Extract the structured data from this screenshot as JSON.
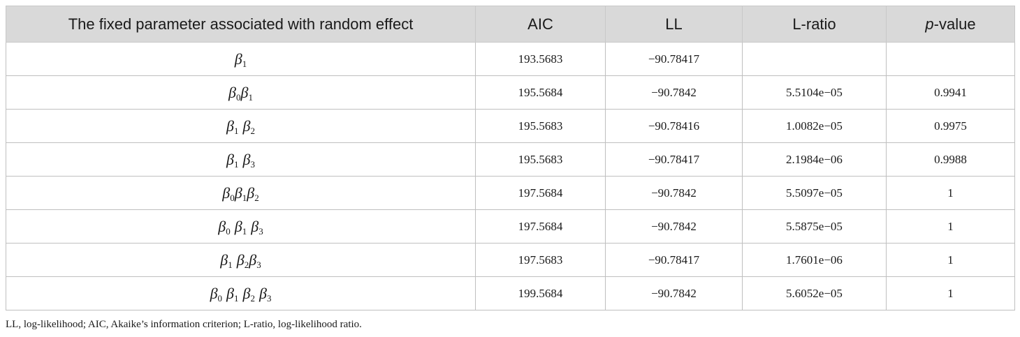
{
  "table": {
    "headers": [
      {
        "pre": "The fixed parameter associated with random effect",
        "italic": "",
        "post": ""
      },
      {
        "pre": "AIC",
        "italic": "",
        "post": ""
      },
      {
        "pre": "LL",
        "italic": "",
        "post": ""
      },
      {
        "pre": "L-ratio",
        "italic": "",
        "post": ""
      },
      {
        "pre": "",
        "italic": "p",
        "post": "-value"
      }
    ],
    "rows": [
      {
        "params": [
          {
            "s": "1",
            "sp": false
          }
        ],
        "aic": "193.5683",
        "ll": "−90.78417",
        "lratio": "",
        "pvalue": ""
      },
      {
        "params": [
          {
            "s": "0",
            "sp": false
          },
          {
            "s": "1",
            "sp": false
          }
        ],
        "aic": "195.5684",
        "ll": "−90.7842",
        "lratio": "5.5104e−05",
        "pvalue": "0.9941"
      },
      {
        "params": [
          {
            "s": "1",
            "sp": false
          },
          {
            "s": "2",
            "sp": true
          }
        ],
        "aic": "195.5683",
        "ll": "−90.78416",
        "lratio": "1.0082e−05",
        "pvalue": "0.9975"
      },
      {
        "params": [
          {
            "s": "1",
            "sp": false
          },
          {
            "s": "3",
            "sp": true
          }
        ],
        "aic": "195.5683",
        "ll": "−90.78417",
        "lratio": "2.1984e−06",
        "pvalue": "0.9988"
      },
      {
        "params": [
          {
            "s": "0",
            "sp": false
          },
          {
            "s": "1",
            "sp": false
          },
          {
            "s": "2",
            "sp": false
          }
        ],
        "aic": "197.5684",
        "ll": "−90.7842",
        "lratio": "5.5097e−05",
        "pvalue": "1"
      },
      {
        "params": [
          {
            "s": "0",
            "sp": false
          },
          {
            "s": "1",
            "sp": true
          },
          {
            "s": "3",
            "sp": true
          }
        ],
        "aic": "197.5684",
        "ll": "−90.7842",
        "lratio": "5.5875e−05",
        "pvalue": "1"
      },
      {
        "params": [
          {
            "s": "1",
            "sp": false
          },
          {
            "s": "2",
            "sp": true
          },
          {
            "s": "3",
            "sp": false
          }
        ],
        "aic": "197.5683",
        "ll": "−90.78417",
        "lratio": "1.7601e−06",
        "pvalue": "1"
      },
      {
        "params": [
          {
            "s": "0",
            "sp": false
          },
          {
            "s": "1",
            "sp": true
          },
          {
            "s": "2",
            "sp": true
          },
          {
            "s": "3",
            "sp": true
          }
        ],
        "aic": "199.5684",
        "ll": "−90.7842",
        "lratio": "5.6052e−05",
        "pvalue": "1"
      }
    ]
  },
  "footnote": "LL, log-likelihood; AIC, Akaike’s information criterion; L-ratio, log-likelihood ratio.",
  "symbols": {
    "beta": "β"
  },
  "colors": {
    "header_bg": "#d9d9d9",
    "border": "#bfbfbf",
    "text": "#1a1a1a"
  }
}
